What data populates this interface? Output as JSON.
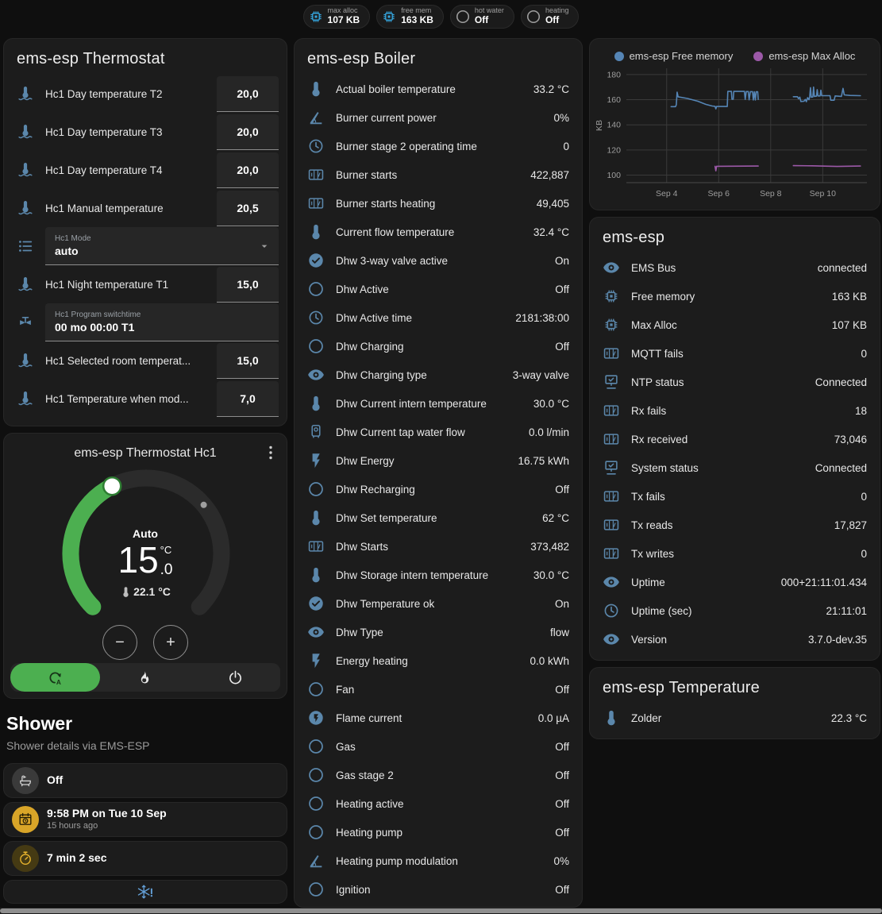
{
  "badges": [
    {
      "icon": "chip",
      "icon_color": "#35a7e0",
      "label": "max alloc",
      "value": "107 KB"
    },
    {
      "icon": "chip",
      "icon_color": "#35a7e0",
      "label": "free mem",
      "value": "163 KB"
    },
    {
      "icon": "circle-outline",
      "icon_color": "#9e9e9e",
      "label": "hot water",
      "value": "Off"
    },
    {
      "icon": "circle-outline",
      "icon_color": "#9e9e9e",
      "label": "heating",
      "value": "Off"
    }
  ],
  "thermostat_card": {
    "title": "ems-esp Thermostat",
    "rows": [
      {
        "type": "number",
        "icon": "thermometer-water",
        "name": "Hc1 Day temperature T2",
        "value": "20,0"
      },
      {
        "type": "number",
        "icon": "thermometer-water",
        "name": "Hc1 Day temperature T3",
        "value": "20,0"
      },
      {
        "type": "number",
        "icon": "thermometer-water",
        "name": "Hc1 Day temperature T4",
        "value": "20,0"
      },
      {
        "type": "number",
        "icon": "thermometer-water",
        "name": "Hc1 Manual temperature",
        "value": "20,5"
      },
      {
        "type": "select",
        "icon": "format-list",
        "label": "Hc1 Mode",
        "value": "auto"
      },
      {
        "type": "number",
        "icon": "thermometer-water",
        "name": "Hc1 Night temperature T1",
        "value": "15,0"
      },
      {
        "type": "text",
        "icon": "valve",
        "label": "Hc1 Program switchtime",
        "value": "00 mo 00:00 T1"
      },
      {
        "type": "number",
        "icon": "thermometer-water",
        "name": "Hc1 Selected room temperat...",
        "value": "15,0"
      },
      {
        "type": "number",
        "icon": "thermometer-water",
        "name": "Hc1 Temperature when mod...",
        "value": "7,0"
      }
    ]
  },
  "dial_card": {
    "title": "ems-esp Thermostat Hc1",
    "mode_label": "Auto",
    "target_temp_int": "15",
    "target_temp_dec": ".0",
    "temp_unit": "°C",
    "current_temp": "22.1 °C",
    "decrease_label": "−",
    "increase_label": "+",
    "accent_color": "#4caf50",
    "modes": [
      {
        "icon": "auto-mode",
        "active": true
      },
      {
        "icon": "fire",
        "active": false
      },
      {
        "icon": "power",
        "active": false
      }
    ]
  },
  "shower_section": {
    "title": "Shower",
    "subtitle": "Shower details via EMS-ESP",
    "tiles": [
      {
        "icon": "bathtub",
        "style": "gray",
        "primary": "Off",
        "secondary": ""
      },
      {
        "icon": "calendar-clock",
        "style": "amber-filled",
        "primary": "9:58 PM on Tue 10 Sep",
        "secondary": "15 hours ago"
      },
      {
        "icon": "timer",
        "style": "amber-dim",
        "primary": "7 min 2 sec",
        "secondary": ""
      },
      {
        "icon": "snowflake-alert",
        "style": "alert",
        "primary": "",
        "secondary": ""
      }
    ]
  },
  "boiler_card": {
    "title": "ems-esp Boiler",
    "rows": [
      {
        "icon": "thermometer",
        "name": "Actual boiler temperature",
        "value": "33.2 °C"
      },
      {
        "icon": "angle",
        "name": "Burner current power",
        "value": "0%"
      },
      {
        "icon": "clock",
        "name": "Burner stage 2 operating time",
        "value": "0"
      },
      {
        "icon": "counter",
        "name": "Burner starts",
        "value": "422,887"
      },
      {
        "icon": "counter",
        "name": "Burner starts heating",
        "value": "49,405"
      },
      {
        "icon": "thermometer",
        "name": "Current flow temperature",
        "value": "32.4 °C"
      },
      {
        "icon": "check-circle",
        "name": "Dhw 3-way valve active",
        "value": "On"
      },
      {
        "icon": "circle-outline",
        "name": "Dhw Active",
        "value": "Off"
      },
      {
        "icon": "clock",
        "name": "Dhw Active time",
        "value": "2181:38:00"
      },
      {
        "icon": "circle-outline",
        "name": "Dhw Charging",
        "value": "Off"
      },
      {
        "icon": "eye",
        "name": "Dhw Charging type",
        "value": "3-way valve"
      },
      {
        "icon": "thermometer",
        "name": "Dhw Current intern temperature",
        "value": "30.0 °C"
      },
      {
        "icon": "water-boiler",
        "name": "Dhw Current tap water flow",
        "value": "0.0 l/min"
      },
      {
        "icon": "flash",
        "name": "Dhw Energy",
        "value": "16.75 kWh"
      },
      {
        "icon": "circle-outline",
        "name": "Dhw Recharging",
        "value": "Off"
      },
      {
        "icon": "thermometer",
        "name": "Dhw Set temperature",
        "value": "62 °C"
      },
      {
        "icon": "counter",
        "name": "Dhw Starts",
        "value": "373,482"
      },
      {
        "icon": "thermometer",
        "name": "Dhw Storage intern temperature",
        "value": "30.0 °C"
      },
      {
        "icon": "check-circle",
        "name": "Dhw Temperature ok",
        "value": "On"
      },
      {
        "icon": "eye",
        "name": "Dhw Type",
        "value": "flow"
      },
      {
        "icon": "flash",
        "name": "Energy heating",
        "value": "0.0 kWh"
      },
      {
        "icon": "circle-outline",
        "name": "Fan",
        "value": "Off"
      },
      {
        "icon": "flash-circle",
        "name": "Flame current",
        "value": "0.0 µA"
      },
      {
        "icon": "circle-outline",
        "name": "Gas",
        "value": "Off"
      },
      {
        "icon": "circle-outline",
        "name": "Gas stage 2",
        "value": "Off"
      },
      {
        "icon": "circle-outline",
        "name": "Heating active",
        "value": "Off"
      },
      {
        "icon": "circle-outline",
        "name": "Heating pump",
        "value": "Off"
      },
      {
        "icon": "angle",
        "name": "Heating pump modulation",
        "value": "0%"
      },
      {
        "icon": "circle-outline",
        "name": "Ignition",
        "value": "Off"
      }
    ]
  },
  "system_card": {
    "title": "ems-esp",
    "rows": [
      {
        "icon": "eye",
        "name": "EMS Bus",
        "value": "connected"
      },
      {
        "icon": "chip",
        "name": "Free memory",
        "value": "163 KB"
      },
      {
        "icon": "chip",
        "name": "Max Alloc",
        "value": "107 KB"
      },
      {
        "icon": "counter",
        "name": "MQTT fails",
        "value": "0"
      },
      {
        "icon": "network",
        "name": "NTP status",
        "value": "Connected"
      },
      {
        "icon": "counter",
        "name": "Rx fails",
        "value": "18"
      },
      {
        "icon": "counter",
        "name": "Rx received",
        "value": "73,046"
      },
      {
        "icon": "network",
        "name": "System status",
        "value": "Connected"
      },
      {
        "icon": "counter",
        "name": "Tx fails",
        "value": "0"
      },
      {
        "icon": "counter",
        "name": "Tx reads",
        "value": "17,827"
      },
      {
        "icon": "counter",
        "name": "Tx writes",
        "value": "0"
      },
      {
        "icon": "eye",
        "name": "Uptime",
        "value": "000+21:11:01.434"
      },
      {
        "icon": "clock",
        "name": "Uptime (sec)",
        "value": "21:11:01"
      },
      {
        "icon": "eye",
        "name": "Version",
        "value": "3.7.0-dev.35"
      }
    ]
  },
  "temperature_card": {
    "title": "ems-esp Temperature",
    "rows": [
      {
        "icon": "thermometer",
        "name": "Zolder",
        "value": "22.3 °C"
      }
    ]
  },
  "chart_data": {
    "type": "line",
    "title": "",
    "xlabel": "",
    "ylabel": "KB",
    "ylim": [
      94,
      185
    ],
    "yticks": [
      100,
      120,
      140,
      160,
      180
    ],
    "xlim": [
      2.45,
      11.7
    ],
    "xticks": [
      {
        "v": 4,
        "label": "Sep 4"
      },
      {
        "v": 6,
        "label": "Sep 6"
      },
      {
        "v": 8,
        "label": "Sep 8"
      },
      {
        "v": 10,
        "label": "Sep 10"
      }
    ],
    "grid": true,
    "legend_position": "top",
    "series": [
      {
        "name": "ems-esp Free memory",
        "color": "#5585b5",
        "segments": [
          [
            [
              4.17,
              154.5
            ],
            [
              4.34,
              154.5
            ],
            [
              4.37,
              156
            ],
            [
              4.4,
              166
            ],
            [
              4.44,
              162.3
            ],
            [
              4.8,
              161
            ],
            [
              5.2,
              158.8
            ],
            [
              5.5,
              156.3
            ],
            [
              5.75,
              155
            ],
            [
              5.86,
              154.7
            ],
            [
              5.89,
              152.7
            ],
            [
              5.92,
              154.6
            ],
            [
              6.33,
              154.6
            ],
            [
              6.35,
              166.6
            ],
            [
              6.49,
              166.6
            ],
            [
              6.51,
              160.4
            ],
            [
              6.56,
              160.4
            ],
            [
              6.58,
              166.6
            ],
            [
              6.99,
              166.6
            ],
            [
              7.02,
              160.2
            ],
            [
              7.06,
              166.5
            ],
            [
              7.14,
              166.5
            ],
            [
              7.17,
              159.9
            ],
            [
              7.22,
              166.4
            ],
            [
              7.3,
              166.4
            ],
            [
              7.33,
              159.8
            ],
            [
              7.37,
              166.3
            ],
            [
              7.41,
              159.8
            ],
            [
              7.44,
              166.3
            ],
            [
              7.5,
              166.3
            ],
            [
              7.52,
              160.2
            ]
          ],
          [
            [
              8.87,
              162.4
            ],
            [
              9.03,
              162.4
            ],
            [
              9.07,
              160.8
            ],
            [
              9.12,
              162.0
            ],
            [
              9.16,
              158.6
            ],
            [
              9.28,
              158.8
            ],
            [
              9.33,
              160.2
            ],
            [
              9.37,
              158.4
            ],
            [
              9.42,
              161.6
            ],
            [
              9.47,
              160.0
            ],
            [
              9.5,
              162.2
            ],
            [
              9.53,
              169.6
            ],
            [
              9.56,
              162.0
            ],
            [
              9.62,
              162.2
            ],
            [
              9.65,
              170.0
            ],
            [
              9.68,
              162.6
            ],
            [
              9.76,
              162.8
            ],
            [
              9.79,
              168.0
            ],
            [
              9.82,
              163.0
            ],
            [
              9.9,
              163.0
            ],
            [
              9.93,
              167.6
            ],
            [
              9.96,
              163.2
            ],
            [
              10.28,
              163.2
            ],
            [
              10.31,
              159.6
            ],
            [
              10.44,
              159.6
            ],
            [
              10.48,
              163.0
            ],
            [
              10.72,
              162.6
            ],
            [
              10.78,
              169.0
            ],
            [
              10.83,
              163.8
            ],
            [
              11.05,
              163.4
            ],
            [
              11.45,
              163.2
            ]
          ]
        ]
      },
      {
        "name": "ems-esp Max Alloc",
        "color": "#9c59a8",
        "segments": [
          [
            [
              5.86,
              107.0
            ],
            [
              5.89,
              103.4
            ],
            [
              5.92,
              107.0
            ],
            [
              7.52,
              107.2
            ]
          ],
          [
            [
              8.87,
              107.5
            ],
            [
              9.6,
              107.4
            ],
            [
              10.55,
              106.9
            ],
            [
              11.45,
              107.2
            ]
          ]
        ]
      }
    ]
  },
  "colors": {
    "row_icon_blue": "#5b87ab",
    "accent_green": "#4caf50",
    "badge_blue": "#35a7e0",
    "amber": "#d9a528",
    "snowflake_blue": "#64a0d8"
  }
}
